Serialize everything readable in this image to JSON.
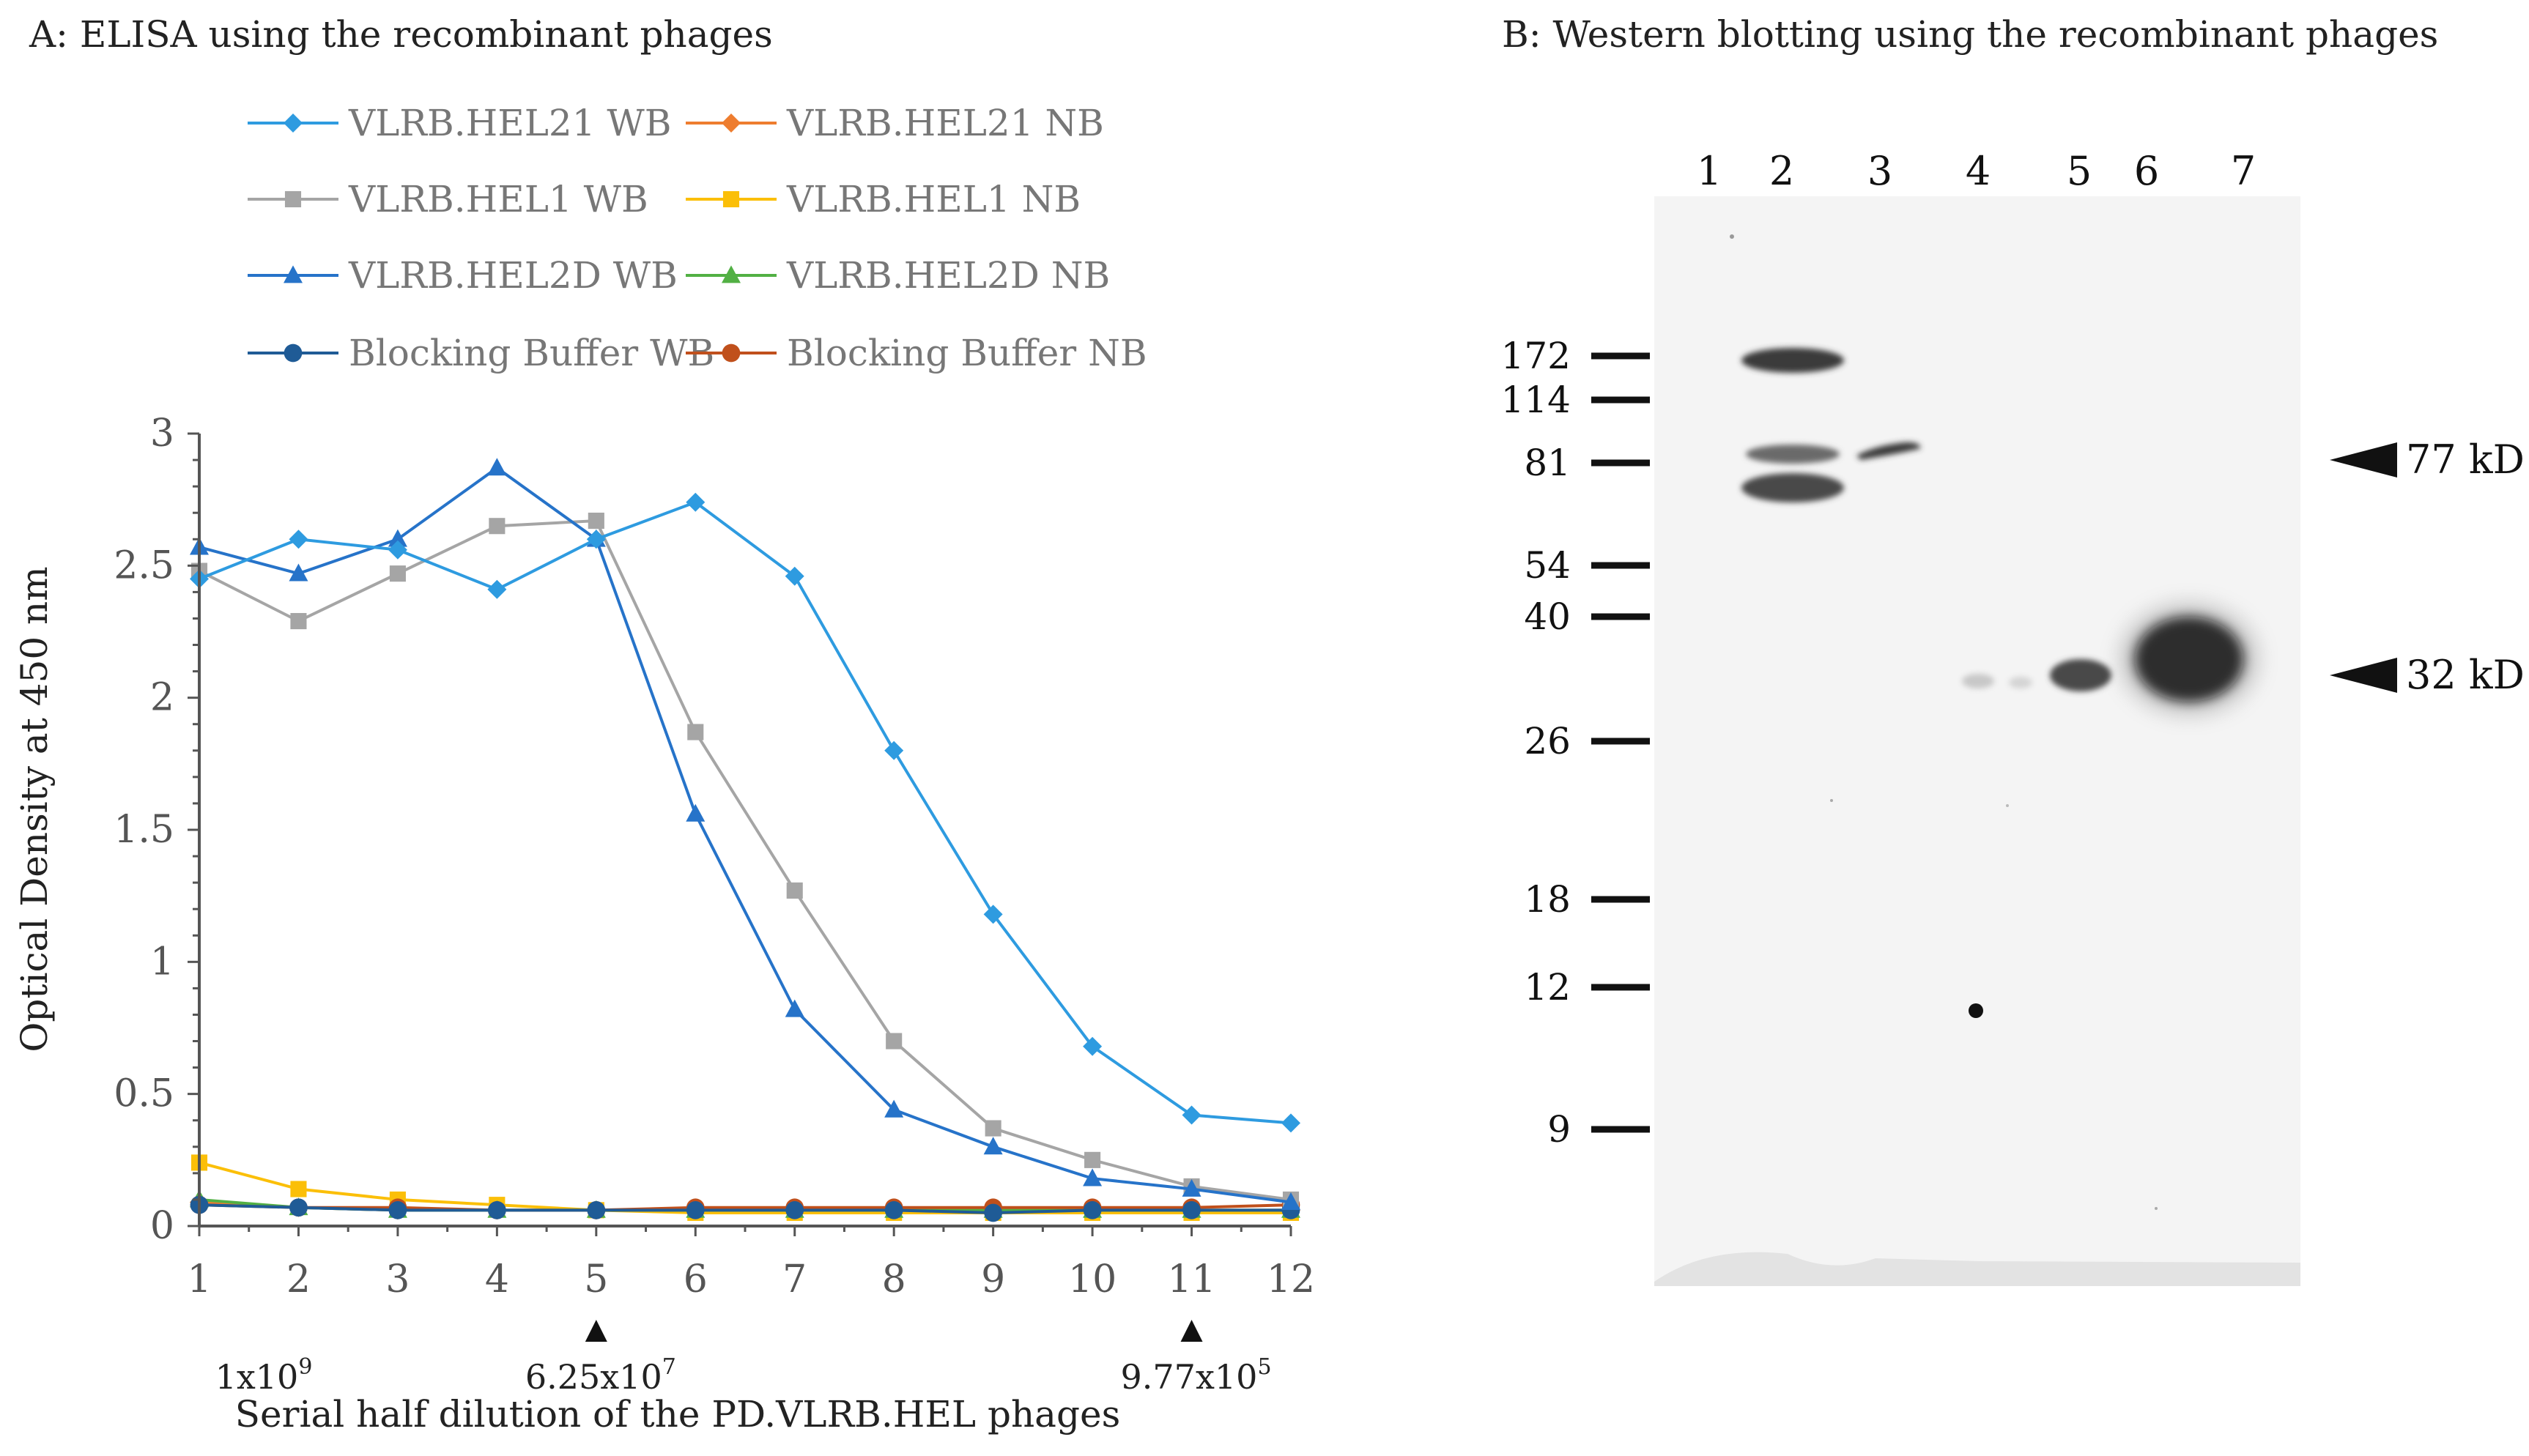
{
  "panel_a": {
    "title": "A: ELISA using the recombinant phages",
    "dilution_marks": [
      {
        "label_base": "1x10",
        "label_exp": "9",
        "x_value": 1,
        "has_arrow": false
      },
      {
        "label_base": "6.25x10",
        "label_exp": "7",
        "x_value": 5,
        "has_arrow": true
      },
      {
        "label_base": "9.77x10",
        "label_exp": "5",
        "x_value": 11,
        "has_arrow": true
      }
    ]
  },
  "panel_b": {
    "title": "B: Western blotting using the recombinant phages",
    "lane_labels": [
      "1",
      "2",
      "3",
      "4",
      "5",
      "6",
      "7"
    ],
    "marker_labels": [
      "172",
      "114",
      "81",
      "54",
      "40",
      "26",
      "18",
      "12",
      "9"
    ],
    "marker_kd": [
      172,
      114,
      81,
      54,
      40,
      26,
      18,
      12,
      9
    ],
    "band_annotations": [
      {
        "label": "77 kD",
        "kd": 77
      },
      {
        "label": "32 kD",
        "kd": 32
      }
    ]
  },
  "chart_data": {
    "type": "line",
    "title": "",
    "xlabel": "Serial half dilution of the PD.VLRB.HEL phages",
    "ylabel": "Optical Density at 450 nm",
    "x": [
      1,
      2,
      3,
      4,
      5,
      6,
      7,
      8,
      9,
      10,
      11,
      12
    ],
    "xlim": [
      1,
      12
    ],
    "ylim": [
      0,
      3
    ],
    "yticks": [
      0,
      0.5,
      1,
      1.5,
      2,
      2.5,
      3
    ],
    "ytick_labels": [
      "0",
      "0.5",
      "1",
      "1.5",
      "2",
      "2.5",
      "3"
    ],
    "xtick_labels": [
      "1",
      "2",
      "3",
      "4",
      "5",
      "6",
      "7",
      "8",
      "9",
      "10",
      "11",
      "12"
    ],
    "legend_position": "top",
    "series": [
      {
        "name": "VLRB.HEL21 WB",
        "color": "#2e9be0",
        "marker": "diamond",
        "values": [
          2.45,
          2.6,
          2.56,
          2.41,
          2.6,
          2.74,
          2.46,
          1.8,
          1.18,
          0.68,
          0.42,
          0.39
        ]
      },
      {
        "name": "VLRB.HEL21 NB",
        "color": "#ee7d2f",
        "marker": "diamond",
        "values": [
          0.09,
          0.07,
          0.06,
          0.06,
          0.06,
          0.06,
          0.06,
          0.06,
          0.06,
          0.06,
          0.06,
          0.06
        ]
      },
      {
        "name": "VLRB.HEL1 WB",
        "color": "#a5a5a5",
        "marker": "square",
        "values": [
          2.48,
          2.29,
          2.47,
          2.65,
          2.67,
          1.87,
          1.27,
          0.7,
          0.37,
          0.25,
          0.15,
          0.1
        ]
      },
      {
        "name": "VLRB.HEL1 NB",
        "color": "#fbbf08",
        "marker": "square",
        "values": [
          0.24,
          0.14,
          0.1,
          0.08,
          0.06,
          0.05,
          0.05,
          0.05,
          0.05,
          0.05,
          0.05,
          0.05
        ]
      },
      {
        "name": "VLRB.HEL2D WB",
        "color": "#2673c9",
        "marker": "triangle",
        "values": [
          2.57,
          2.47,
          2.6,
          2.87,
          2.6,
          1.56,
          0.82,
          0.44,
          0.3,
          0.18,
          0.14,
          0.09
        ]
      },
      {
        "name": "VLRB.HEL2D NB",
        "color": "#52b044",
        "marker": "triangle",
        "values": [
          0.1,
          0.07,
          0.06,
          0.06,
          0.06,
          0.06,
          0.06,
          0.06,
          0.06,
          0.06,
          0.06,
          0.06
        ]
      },
      {
        "name": "Blocking Buffer WB",
        "color": "#1f5b96",
        "marker": "circle",
        "values": [
          0.08,
          0.07,
          0.06,
          0.06,
          0.06,
          0.06,
          0.06,
          0.06,
          0.05,
          0.06,
          0.06,
          0.06
        ]
      },
      {
        "name": "Blocking Buffer NB",
        "color": "#c0501c",
        "marker": "circle",
        "values": [
          0.08,
          0.07,
          0.07,
          0.06,
          0.06,
          0.07,
          0.07,
          0.07,
          0.07,
          0.07,
          0.07,
          0.08
        ]
      }
    ]
  }
}
